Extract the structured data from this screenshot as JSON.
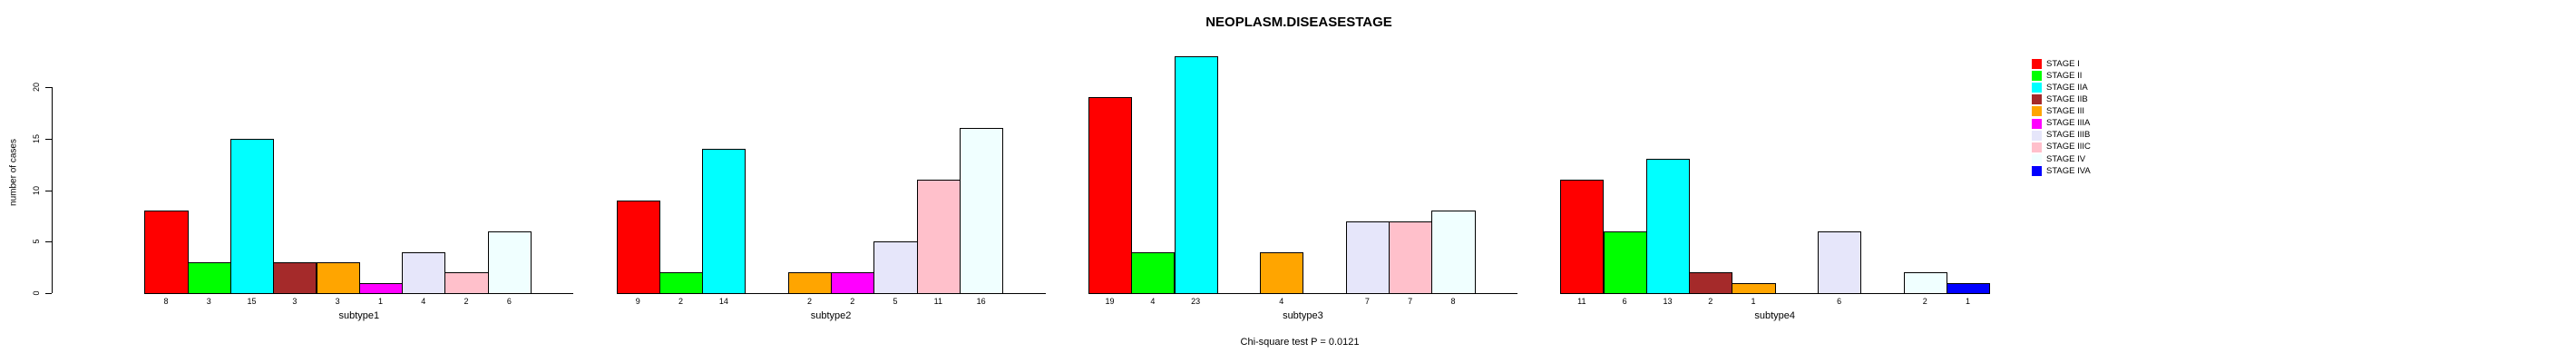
{
  "title": "NEOPLASM.DISEASESTAGE",
  "annotation": "Chi-square test P = 0.0121",
  "y_axis": {
    "label": "number of cases",
    "ticks": [
      0,
      5,
      10,
      15,
      20
    ]
  },
  "chart_data": {
    "type": "bar",
    "title": "NEOPLASM.DISEASESTAGE",
    "xlabel": "",
    "ylabel": "number of cases",
    "ylim": [
      0,
      23
    ],
    "yticks": [
      0,
      5,
      10,
      15,
      20
    ],
    "grid": false,
    "legend_position": "right",
    "annotation": "Chi-square test P = 0.0121",
    "categories": [
      "subtype1",
      "subtype2",
      "subtype3",
      "subtype4"
    ],
    "series": [
      {
        "name": "STAGE I",
        "color": "#FF0000",
        "values": [
          8,
          9,
          19,
          11
        ]
      },
      {
        "name": "STAGE II",
        "color": "#00FF00",
        "values": [
          3,
          2,
          4,
          6
        ]
      },
      {
        "name": "STAGE IIA",
        "color": "#00FFFF",
        "values": [
          15,
          14,
          23,
          13
        ]
      },
      {
        "name": "STAGE IIB",
        "color": "#A52A2A",
        "values": [
          3,
          0,
          0,
          2
        ]
      },
      {
        "name": "STAGE III",
        "color": "#FFA500",
        "values": [
          3,
          2,
          4,
          1
        ]
      },
      {
        "name": "STAGE IIIA",
        "color": "#FF00FF",
        "values": [
          1,
          2,
          0,
          0
        ]
      },
      {
        "name": "STAGE IIIB",
        "color": "#E6E6FA",
        "values": [
          4,
          5,
          7,
          6
        ]
      },
      {
        "name": "STAGE IIIC",
        "color": "#FFC0CB",
        "values": [
          2,
          11,
          7,
          0
        ]
      },
      {
        "name": "STAGE IV",
        "color": "#F0FFFF",
        "values": [
          6,
          16,
          8,
          2
        ]
      },
      {
        "name": "STAGE IVA",
        "color": "#0000FF",
        "values": [
          0,
          0,
          0,
          1
        ]
      }
    ],
    "bar_value_labels_shown_for_nonzero_bars": true
  }
}
